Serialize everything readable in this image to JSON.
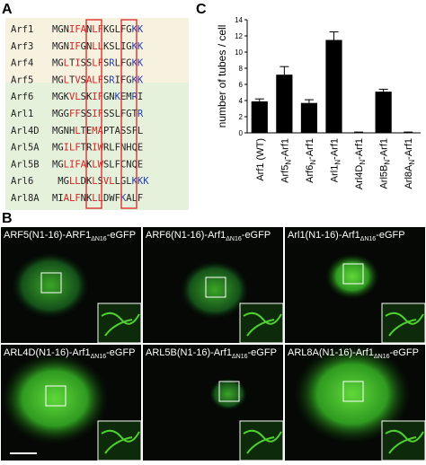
{
  "panels": {
    "a": {
      "label": "A",
      "rows": [
        {
          "name": "Arf1",
          "seq": "MGNIFANLFKGLFGKK"
        },
        {
          "name": "Arf3",
          "seq": "MGNIFGNLLKSLIGKK"
        },
        {
          "name": "Arf4",
          "seq": "MGLTISSLFSRLFGKK"
        },
        {
          "name": "Arf5",
          "seq": "MGLTVSALFSRIFGKK"
        },
        {
          "name": "Arf6",
          "seq": "MGKVLSKIFGNKEMRI"
        },
        {
          "name": "Arl1",
          "seq": "MGGFFSSIFSSLFGTR"
        },
        {
          "name": "Arl4D",
          "seq": "MGNHLTEMAPTASSFL"
        },
        {
          "name": "Arl5A",
          "seq": "MGILFTRIWRLFNHQE"
        },
        {
          "name": "Arl5B",
          "seq": "MGLIFAKLWSLFCNQE"
        },
        {
          "name": "Arl6",
          "seq": "MGLLDKLSVLLGLKKK"
        },
        {
          "name": "Arl8A",
          "seq": "MIALFNKLLDWFKALF"
        }
      ]
    },
    "b": {
      "label": "B",
      "images": [
        [
          "ARF5(N1-16)-ARF1",
          "ΔN16",
          "-eGFP"
        ],
        [
          "ARF6(N1-16)-Arf1",
          "ΔN16",
          "-eGFP"
        ],
        [
          "Arl1(N1-16)-Arf1",
          "ΔN16",
          "-eGFP"
        ],
        [
          "ARL4D(N1-16)-Arf1",
          "ΔN16",
          "-eGFP"
        ],
        [
          "ARL5B(N1-16)-Arf1",
          "ΔN16",
          "-eGFP"
        ],
        [
          "ARL8A(N1-16)-Arf1",
          "ΔN16",
          "-eGFP"
        ]
      ]
    },
    "c": {
      "label": "C"
    }
  },
  "chart_data": {
    "type": "bar",
    "ylabel": "number of tubes / cell",
    "categories": [
      [
        "Arf1 (WT)"
      ],
      [
        "Arf5",
        "N",
        "-Arf1"
      ],
      [
        "Arf6",
        "N",
        "-Arf1"
      ],
      [
        "Arl1",
        "N",
        "-Arf1"
      ],
      [
        "Arl4D",
        "N",
        "-Arf1"
      ],
      [
        "Arl5B",
        "N",
        "-Arf1"
      ],
      [
        "Arl8A",
        "N",
        "-Arf1"
      ]
    ],
    "values": [
      3.9,
      7.2,
      3.7,
      11.5,
      0.05,
      5.1,
      0.05
    ],
    "errors": [
      0.3,
      1.0,
      0.4,
      1.0,
      0.05,
      0.3,
      0.05
    ],
    "color": "#000000",
    "ylim": [
      0,
      14
    ],
    "yticks": [
      0,
      2,
      4,
      6,
      8,
      10,
      12,
      14
    ]
  }
}
